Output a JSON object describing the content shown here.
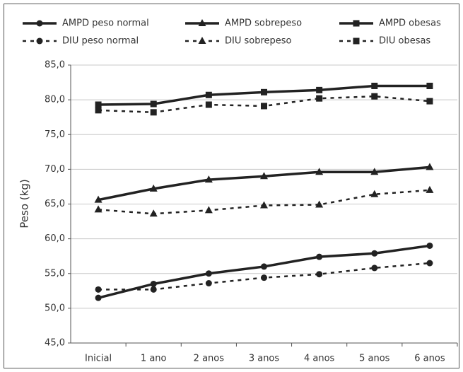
{
  "chart_data": {
    "type": "line",
    "y_label": "Peso (kg)",
    "categories": [
      "Inicial",
      "1 ano",
      "2 anos",
      "3 anos",
      "4 anos",
      "5 anos",
      "6 anos"
    ],
    "series": [
      {
        "name": "AMPD peso normal",
        "color": "#222222",
        "marker": "circle",
        "linestyle": "solid",
        "values": [
          51.5,
          53.5,
          55.0,
          56.0,
          57.4,
          57.9,
          59.0
        ]
      },
      {
        "name": "AMPD sobrepeso",
        "color": "#222222",
        "marker": "triangle",
        "linestyle": "solid",
        "values": [
          65.6,
          67.2,
          68.5,
          69.0,
          69.6,
          69.6,
          70.3
        ]
      },
      {
        "name": "AMPD obesas",
        "color": "#222222",
        "marker": "square",
        "linestyle": "solid",
        "values": [
          79.3,
          79.4,
          80.7,
          81.1,
          81.4,
          82.0,
          82.0
        ]
      },
      {
        "name": "DIU peso normal",
        "color": "#222222",
        "marker": "circle",
        "linestyle": "dashed",
        "values": [
          52.7,
          52.7,
          53.6,
          54.4,
          54.9,
          55.8,
          56.5
        ]
      },
      {
        "name": "DIU sobrepeso",
        "color": "#222222",
        "marker": "triangle",
        "linestyle": "dashed",
        "values": [
          64.2,
          63.6,
          64.1,
          64.8,
          64.9,
          66.4,
          67.0
        ]
      },
      {
        "name": "DIU obesas",
        "color": "#222222",
        "marker": "square",
        "linestyle": "dashed",
        "values": [
          78.5,
          78.2,
          79.3,
          79.1,
          80.2,
          80.5,
          79.8
        ]
      }
    ],
    "ylim": [
      45,
      85
    ],
    "yticks": [
      {
        "value": 45,
        "label": "45,0"
      },
      {
        "value": 50,
        "label": "50,0"
      },
      {
        "value": 55,
        "label": "55,0"
      },
      {
        "value": 60,
        "label": "60,0"
      },
      {
        "value": 65,
        "label": "65,0"
      },
      {
        "value": 70,
        "label": "70,0"
      },
      {
        "value": 75,
        "label": "75,0"
      },
      {
        "value": 80,
        "label": "80,0"
      },
      {
        "value": 85,
        "label": "85,0"
      }
    ],
    "grid": true,
    "legend": "top"
  }
}
